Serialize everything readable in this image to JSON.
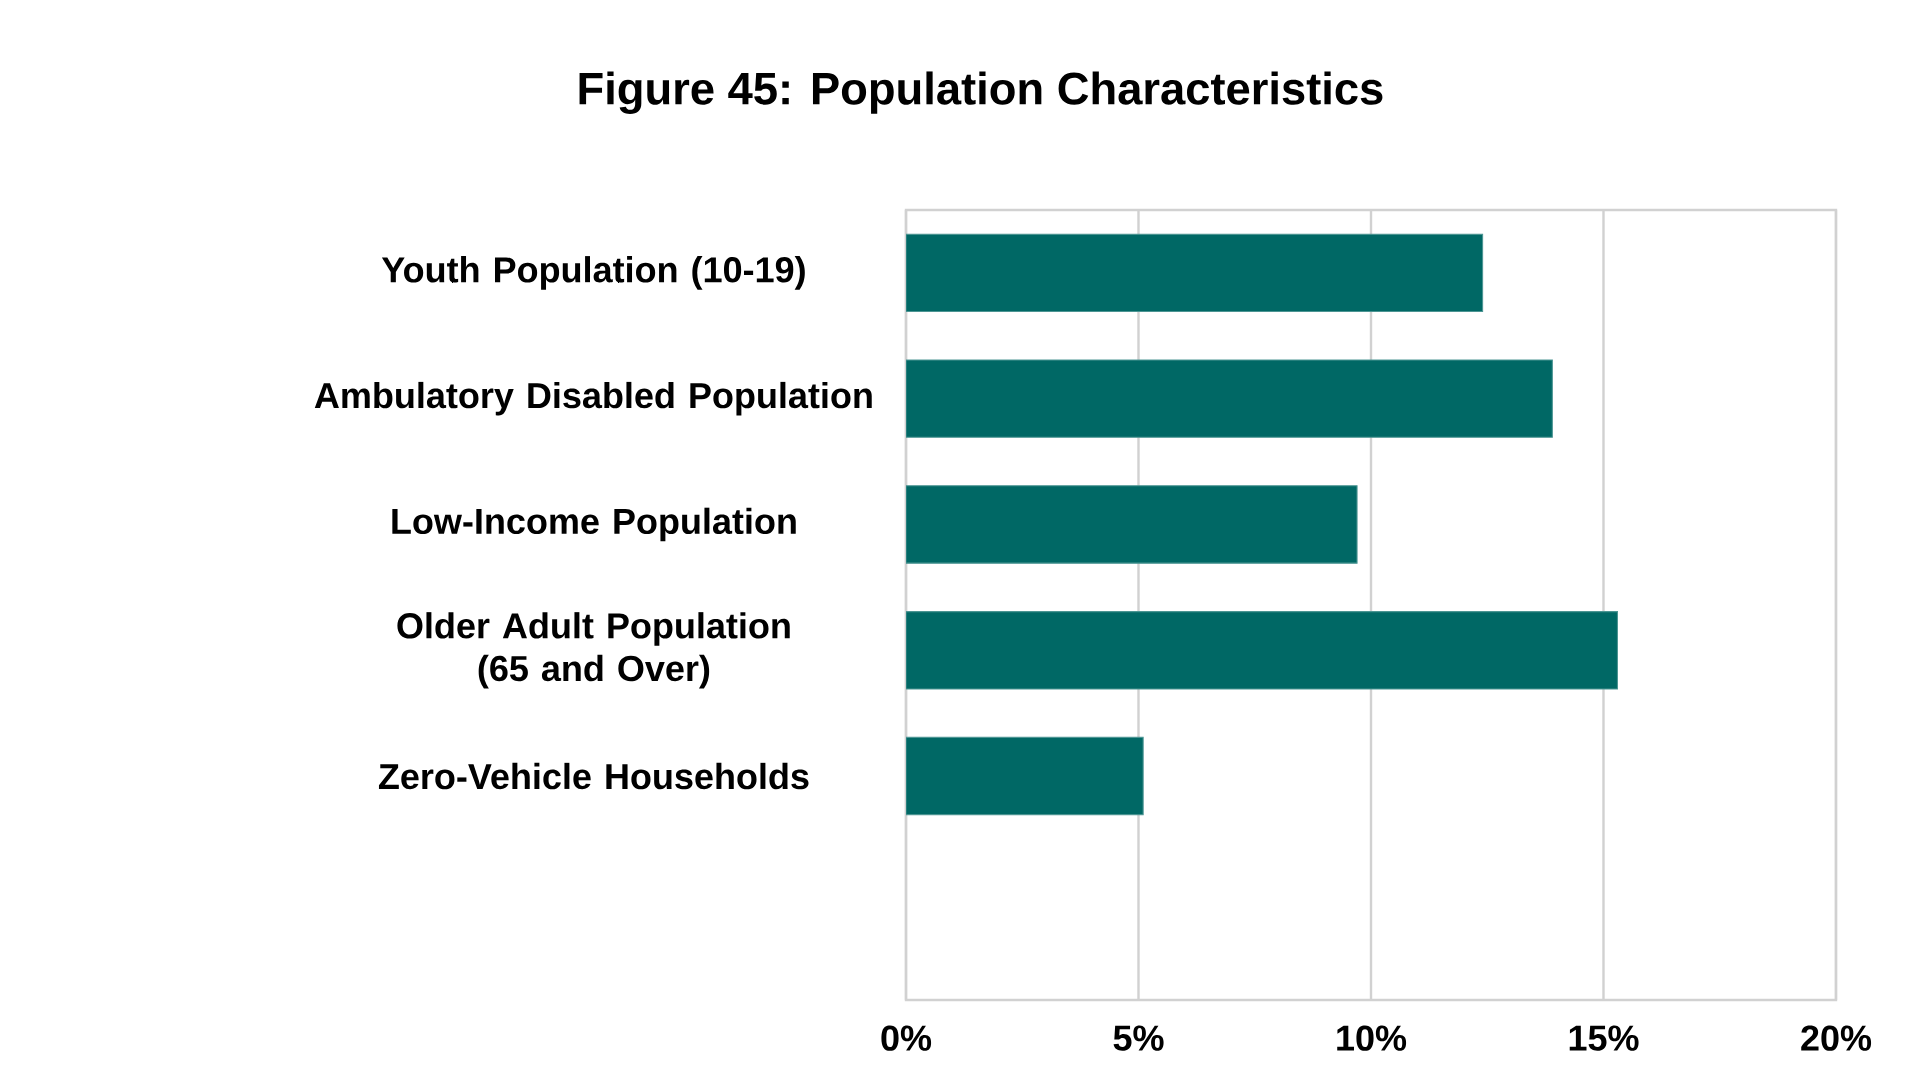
{
  "chart_data": {
    "type": "bar",
    "orientation": "horizontal",
    "title": "Figure 45: Population Characteristics",
    "categories": [
      "Youth Population (10-19)",
      "Ambulatory Disabled Population",
      "Low-Income Population",
      "Older Adult Population (65 and Over)",
      "Zero-Vehicle Households"
    ],
    "values": [
      12.4,
      13.9,
      9.7,
      15.3,
      5.1
    ],
    "color": "#006865",
    "xlim": [
      0,
      20
    ],
    "xticks": [
      {
        "value": 0,
        "label": "0%"
      },
      {
        "value": 5,
        "label": "5%"
      },
      {
        "value": 10,
        "label": "10%"
      },
      {
        "value": 15,
        "label": "15%"
      },
      {
        "value": 20,
        "label": "20%"
      }
    ],
    "grid": "x"
  }
}
